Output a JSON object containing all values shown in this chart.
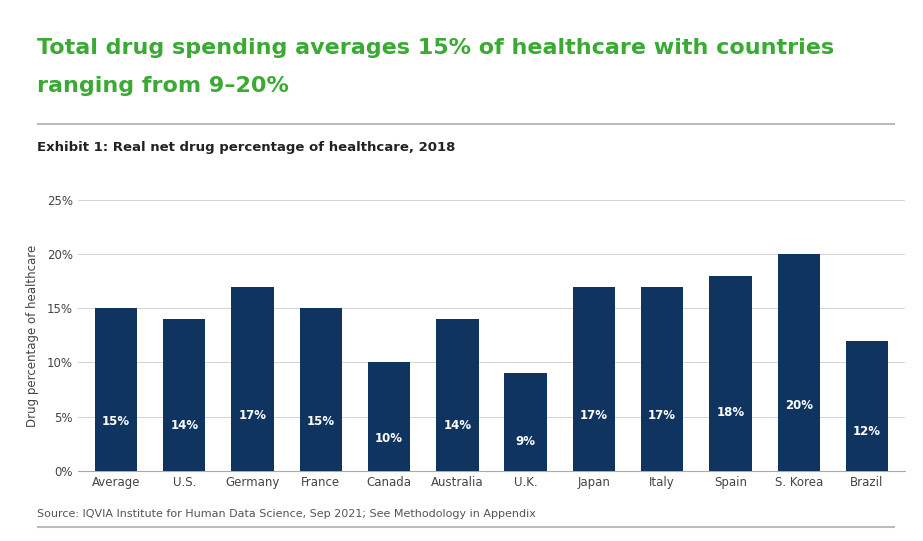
{
  "title_line1": "Total drug spending averages 15% of healthcare with countries",
  "title_line2": "ranging from 9–20%",
  "subtitle": "Exhibit 1: Real net drug percentage of healthcare, 2018",
  "source": "Source: IQVIA Institute for Human Data Science, Sep 2021; See Methodology in Appendix",
  "categories": [
    "Average",
    "U.S.",
    "Germany",
    "France",
    "Canada",
    "Australia",
    "U.K.",
    "Japan",
    "Italy",
    "Spain",
    "S. Korea",
    "Brazil"
  ],
  "values": [
    15,
    14,
    17,
    15,
    10,
    14,
    9,
    17,
    17,
    18,
    20,
    12
  ],
  "labels": [
    "15%",
    "14%",
    "17%",
    "15%",
    "10%",
    "14%",
    "9%",
    "17%",
    "17%",
    "18%",
    "20%",
    "12%"
  ],
  "bar_color": "#0f3460",
  "title_color": "#3aaa35",
  "subtitle_color": "#222222",
  "source_color": "#555555",
  "label_color": "#ffffff",
  "background_color": "#ffffff",
  "ylabel": "Drug percentage of healthcare",
  "ylim": [
    0,
    25
  ],
  "yticks": [
    0,
    5,
    10,
    15,
    20,
    25
  ],
  "ytick_labels": [
    "0%",
    "5%",
    "10%",
    "15%",
    "20%",
    "25%"
  ],
  "title_fontsize": 16,
  "subtitle_fontsize": 9.5,
  "label_fontsize": 8.5,
  "axis_fontsize": 8.5,
  "ylabel_fontsize": 8.5,
  "source_fontsize": 8
}
